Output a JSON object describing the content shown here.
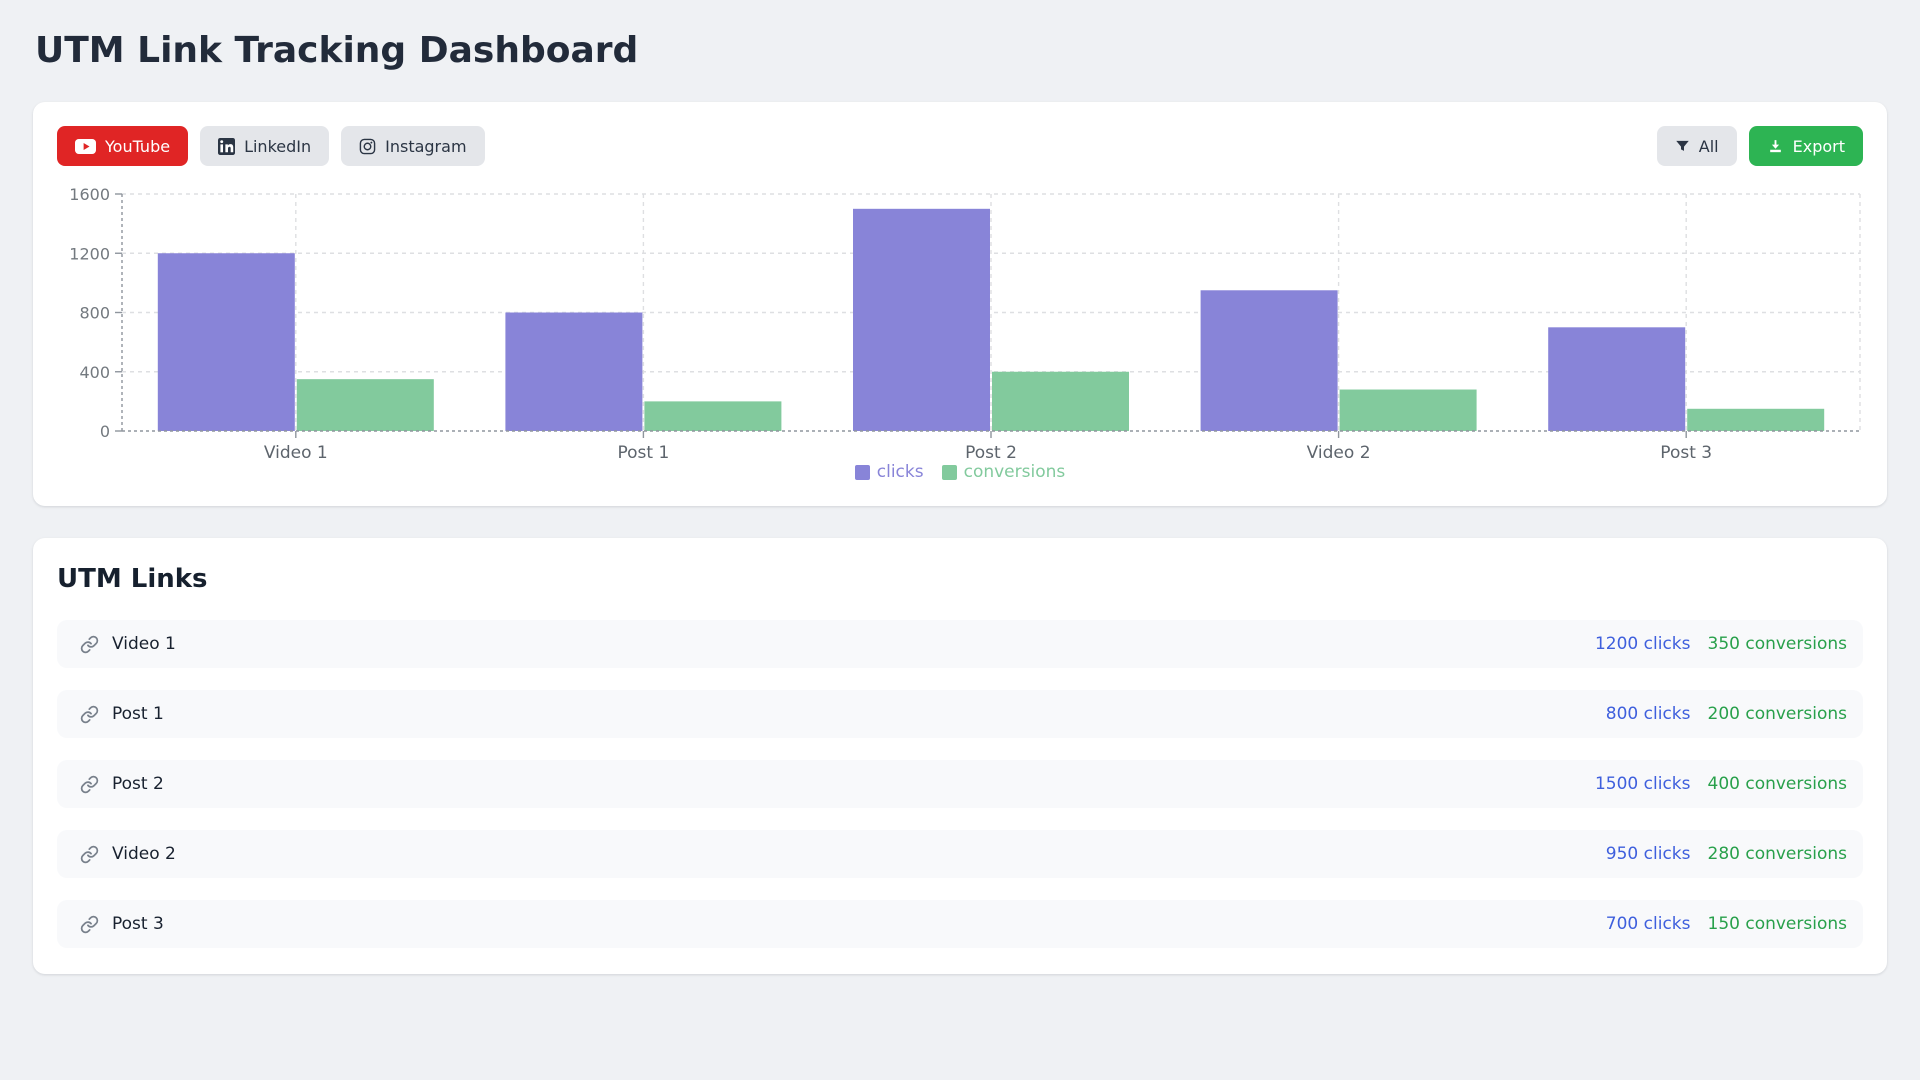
{
  "header": {
    "title": "UTM Link Tracking Dashboard"
  },
  "toolbar": {
    "platform_filters": [
      {
        "label": "YouTube",
        "icon": "youtube-icon",
        "active": true
      },
      {
        "label": "LinkedIn",
        "icon": "linkedin-icon",
        "active": false
      },
      {
        "label": "Instagram",
        "icon": "instagram-icon",
        "active": false
      }
    ],
    "filter_all_label": "All",
    "export_label": "Export"
  },
  "chart_data": {
    "type": "bar",
    "title": "",
    "xlabel": "",
    "ylabel": "",
    "categories": [
      "Video 1",
      "Post 1",
      "Post 2",
      "Video 2",
      "Post 3"
    ],
    "series": [
      {
        "name": "clicks",
        "values": [
          1200,
          800,
          1500,
          950,
          700
        ],
        "color": "#8884d8"
      },
      {
        "name": "conversions",
        "values": [
          350,
          200,
          400,
          280,
          150
        ],
        "color": "#82ca9d"
      }
    ],
    "ylim": [
      0,
      1600
    ],
    "yticks": [
      0,
      400,
      800,
      1200,
      1600
    ],
    "grid": true,
    "grid_style": "dashed",
    "legend_position": "bottom"
  },
  "utm_links": {
    "title": "UTM Links",
    "clicks_suffix": " clicks",
    "conversions_suffix": " conversions",
    "items": [
      {
        "name": "Video 1",
        "clicks": 1200,
        "conversions": 350
      },
      {
        "name": "Post 1",
        "clicks": 800,
        "conversions": 200
      },
      {
        "name": "Post 2",
        "clicks": 1500,
        "conversions": 400
      },
      {
        "name": "Video 2",
        "clicks": 950,
        "conversions": 280
      },
      {
        "name": "Post 3",
        "clicks": 700,
        "conversions": 150
      }
    ]
  },
  "icons": {
    "youtube": "youtube-play-icon",
    "linkedin": "linkedin-icon",
    "instagram": "instagram-icon",
    "filter": "filter-funnel-icon",
    "export": "download-icon",
    "link": "chain-link-icon"
  },
  "colors": {
    "page_bg": "#eff1f4",
    "accent_red": "#e02525",
    "neutral_button_bg": "#e4e6ea",
    "export_green": "#2db453",
    "clicks_purple": "#8884d8",
    "conversions_bar_green": "#82ca9d",
    "clicks_text_blue": "#3e5fdd",
    "conversions_text_green": "#28a04b",
    "title_text": "#222b3a"
  }
}
